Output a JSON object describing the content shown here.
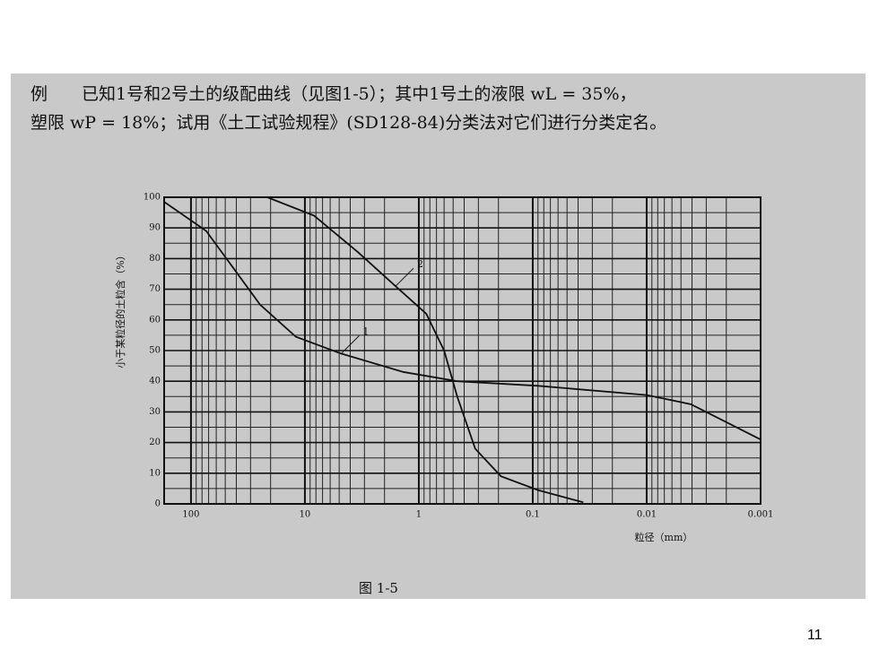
{
  "text": {
    "lines": [
      "例　　已知1号和2号土的级配曲线（见图1-5）；其中1号土的液限 wL = 35%，",
      "塑限 wP = 18%；试用《土工试验规程》(SD128-84)分类法对它们进行分类定名。"
    ]
  },
  "chart_data": {
    "type": "line",
    "xlabel": "粒径（mm）",
    "ylabel": "小于某粒径的土粒含（%）",
    "xscale": "log",
    "xlim": [
      172,
      0.001
    ],
    "xticks": [
      100,
      10,
      1,
      0.1,
      0.01,
      0.001
    ],
    "ylim": [
      0,
      100
    ],
    "yticks": [
      0,
      10,
      20,
      30,
      40,
      50,
      60,
      70,
      80,
      90,
      100
    ],
    "grid": true,
    "minor_grid": true,
    "series": [
      {
        "name": "1",
        "color": "#111111",
        "x": [
          172,
          73.5,
          42.6,
          24.8,
          12,
          4.8,
          1.36,
          0.46,
          0.09,
          0.01,
          0.0041,
          0.001
        ],
        "values": [
          98.5,
          89,
          77,
          65,
          54.5,
          49,
          43,
          40,
          38.5,
          35.5,
          32.5,
          21
        ]
      },
      {
        "name": "2",
        "color": "#111111",
        "x": [
          21.4,
          8.3,
          3.4,
          1.6,
          0.86,
          0.6,
          0.46,
          0.32,
          0.19,
          0.09,
          0.036
        ],
        "values": [
          100,
          94,
          82,
          71,
          62,
          50,
          35,
          18,
          9,
          4.5,
          0.5
        ]
      }
    ],
    "caption": "图 1-5"
  },
  "page_number": "11"
}
